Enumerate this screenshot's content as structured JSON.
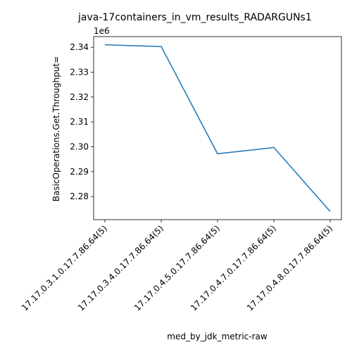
{
  "chart_data": {
    "type": "line",
    "title": "java-17containers_in_vm_results_RADARGUNs1",
    "xlabel": "med_by_jdk_metric-raw",
    "ylabel": "BasicOperations.Get.Throughput=",
    "y_offset_label": "1e6",
    "categories": [
      "17.17.0.3.1.0.17.7.86.64(5)",
      "17.17.0.3.4.0.17.7.86.64(5)",
      "17.17.0.4.5.0.17.7.86.64(5)",
      "17.17.0.4.7.0.17.7.86.64(5)",
      "17.17.0.4.8.0.17.7.86.64(5)"
    ],
    "values": [
      2341000,
      2340300,
      2297200,
      2299700,
      2274000
    ],
    "yticks": [
      2.28,
      2.29,
      2.3,
      2.31,
      2.32,
      2.33,
      2.34
    ],
    "ytick_labels": [
      "2.28",
      "2.29",
      "2.30",
      "2.31",
      "2.32",
      "2.33",
      "2.34"
    ],
    "ylim": [
      2.2707,
      2.3443
    ],
    "grid": false,
    "line_color": "#1f77b4"
  }
}
